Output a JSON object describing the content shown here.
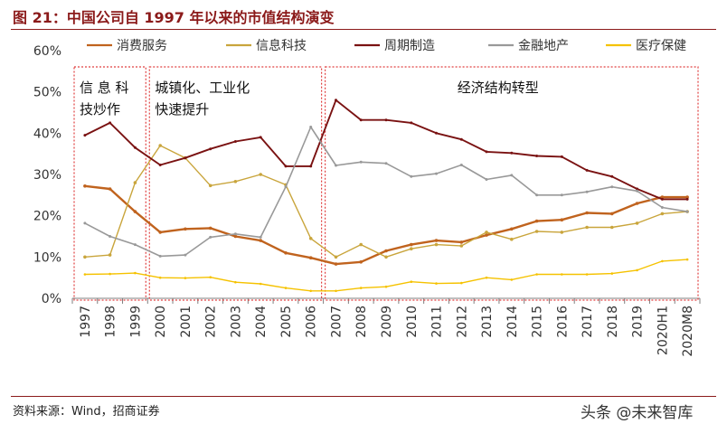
{
  "header": {
    "title": "图 21：中国公司自 1997 年以来的市值结构演变"
  },
  "footer": {
    "source": "资料来源：Wind，招商证券",
    "watermark": "头条 @未来智库"
  },
  "chart_data": {
    "type": "line",
    "categories": [
      "1997",
      "1998",
      "1999",
      "2000",
      "2001",
      "2002",
      "2003",
      "2004",
      "2005",
      "2006",
      "2007",
      "2008",
      "2009",
      "2010",
      "2011",
      "2012",
      "2013",
      "2014",
      "2015",
      "2016",
      "2017",
      "2018",
      "2019",
      "2020H1",
      "2020M8"
    ],
    "ylim": [
      0,
      60
    ],
    "yticks": [
      "0%",
      "10%",
      "20%",
      "30%",
      "40%",
      "50%",
      "60%"
    ],
    "series": [
      {
        "name": "消费服务",
        "color": "#c0631e",
        "values": [
          27.2,
          26.5,
          21.0,
          16.0,
          16.8,
          17.0,
          15.0,
          14.0,
          11.0,
          9.8,
          8.3,
          8.8,
          11.5,
          13.0,
          14.0,
          13.6,
          15.3,
          16.8,
          18.7,
          19.0,
          20.7,
          20.5,
          23.0,
          24.5,
          24.5
        ]
      },
      {
        "name": "信息科技",
        "color": "#c9a53c",
        "values": [
          10.0,
          10.5,
          28.0,
          37.0,
          34.0,
          27.3,
          28.3,
          30.0,
          27.5,
          14.5,
          10.0,
          13.0,
          10.0,
          12.0,
          13.0,
          12.7,
          16.0,
          14.3,
          16.2,
          16.0,
          17.2,
          17.2,
          18.2,
          20.5,
          21.0
        ]
      },
      {
        "name": "周期制造",
        "color": "#7a1212",
        "values": [
          39.5,
          42.5,
          36.5,
          32.3,
          34.0,
          36.2,
          38.0,
          39.0,
          32.0,
          32.0,
          48.0,
          43.2,
          43.2,
          42.5,
          40.0,
          38.5,
          35.5,
          35.2,
          34.5,
          34.3,
          31.0,
          29.5,
          26.5,
          24.0,
          24.0
        ]
      },
      {
        "name": "金融地产",
        "color": "#999999",
        "values": [
          18.2,
          15.0,
          13.0,
          10.2,
          10.5,
          14.8,
          15.6,
          14.8,
          27.0,
          41.5,
          32.2,
          33.0,
          32.7,
          29.5,
          30.2,
          32.3,
          28.8,
          29.8,
          25.0,
          25.0,
          25.8,
          27.0,
          26.0,
          22.0,
          21.0
        ]
      },
      {
        "name": "医疗保健",
        "color": "#f5c200",
        "values": [
          5.8,
          5.9,
          6.1,
          5.0,
          4.9,
          5.1,
          3.9,
          3.5,
          2.5,
          1.8,
          1.8,
          2.5,
          2.8,
          4.0,
          3.6,
          3.7,
          5.0,
          4.5,
          5.8,
          5.8,
          5.8,
          6.0,
          6.8,
          9.0,
          9.4
        ]
      }
    ],
    "regions": [
      {
        "label_lines": [
          "信 息 科",
          "技炒作"
        ],
        "from": "1997",
        "to": "1999"
      },
      {
        "label_lines": [
          "城镇化、工业化",
          "快速提升"
        ],
        "from": "2000",
        "to": "2006"
      },
      {
        "label_lines": [
          "经济结构转型"
        ],
        "from": "2007",
        "to": "2020M8"
      }
    ],
    "grid": false,
    "legend_position": "top"
  }
}
